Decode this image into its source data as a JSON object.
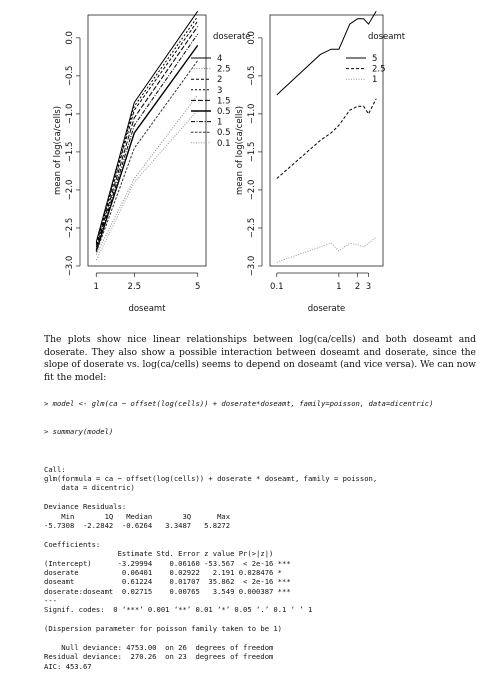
{
  "chart_data": [
    {
      "type": "line",
      "xlabel": "doseamt",
      "ylabel": "mean of log(ca/cells)",
      "x": [
        1,
        2.5,
        5
      ],
      "xticks": [
        "1",
        "2.5",
        "5"
      ],
      "ylim": [
        -3.0,
        0.3
      ],
      "yticks": [
        "-3.0",
        "-2.5",
        "-2.0",
        "-1.5",
        "-1.0",
        "-0.5",
        "0.0"
      ],
      "legend_title": "doserate",
      "legend_position": "top-right",
      "series": [
        {
          "name": "4",
          "values": [
            -2.68,
            -0.85,
            0.35
          ],
          "dash": "",
          "width": 1,
          "color": "#000000"
        },
        {
          "name": "2.5",
          "values": [
            -2.85,
            -1.85,
            -0.75
          ],
          "dash": "1,1.6",
          "width": 1,
          "color": "#888888"
        },
        {
          "name": "2",
          "values": [
            -2.72,
            -0.95,
            0.22
          ],
          "dash": "3,2",
          "width": 1,
          "color": "#000000"
        },
        {
          "name": "3",
          "values": [
            -2.7,
            -0.9,
            0.28
          ],
          "dash": "2,2",
          "width": 1,
          "color": "#000000"
        },
        {
          "name": "1.5",
          "values": [
            -2.75,
            -1.05,
            0.15
          ],
          "dash": "5,2",
          "width": 1,
          "color": "#000000"
        },
        {
          "name": "0.5",
          "values": [
            -2.8,
            -1.25,
            -0.1
          ],
          "dash": "",
          "width": 1.4,
          "color": "#000000"
        },
        {
          "name": "1",
          "values": [
            -2.78,
            -1.15,
            0.05
          ],
          "dash": "4,1.5,1,1.5",
          "width": 1,
          "color": "#000000"
        },
        {
          "name": "0.5",
          "values": [
            -2.82,
            -1.45,
            -0.3
          ],
          "dash": "2.5,1.5",
          "width": 1,
          "color": "#333333"
        },
        {
          "name": "0.1",
          "values": [
            -2.92,
            -1.9,
            -0.95
          ],
          "dash": "1,1.5",
          "width": 1,
          "color": "#999999"
        }
      ]
    },
    {
      "type": "line",
      "xlabel": "doserate",
      "ylabel": "mean of log(ca/cells)",
      "x": [
        0.1,
        0.5,
        0.75,
        1,
        1.5,
        2,
        2.5,
        3,
        4
      ],
      "xticks": [
        "0.1",
        "1",
        "2",
        "3"
      ],
      "xtick_positions": [
        0.1,
        1,
        2,
        3
      ],
      "ylim": [
        -3.0,
        0.3
      ],
      "yticks": [
        "-3.0",
        "-2.5",
        "-2.0",
        "-1.5",
        "-1.0",
        "-0.5",
        "0.0"
      ],
      "legend_title": "doseamt",
      "legend_position": "top-right",
      "series": [
        {
          "name": "5",
          "values": [
            -0.75,
            -0.22,
            -0.15,
            -0.15,
            0.18,
            0.25,
            0.25,
            0.18,
            0.35
          ],
          "dash": "",
          "width": 1,
          "color": "#000000"
        },
        {
          "name": "2.5",
          "values": [
            -1.85,
            -1.35,
            -1.25,
            -1.15,
            -0.95,
            -0.9,
            -0.9,
            -1.0,
            -0.8
          ],
          "dash": "3,2",
          "width": 1,
          "color": "#000000"
        },
        {
          "name": "1",
          "values": [
            -2.95,
            -2.75,
            -2.7,
            -2.8,
            -2.7,
            -2.72,
            -2.75,
            -2.7,
            -2.62
          ],
          "dash": "1,1.5",
          "width": 1,
          "color": "#999999"
        }
      ]
    }
  ],
  "text": {
    "paragraph": "The plots show nice linear relationships between log(ca/cells) and both doseamt and doserate. They also show a possible interaction between doseamt and doserate, since the slope of doserate vs. log(ca/cells) seems to depend on doseamt (and vice versa). We can now fit the model:",
    "cmd1": "> model <- glm(ca ~ offset(log(cells)) + doserate*doseamt, family=poisson, data=dicentric)",
    "cmd2": "> summary(model)",
    "out": [
      "",
      "Call:",
      "glm(formula = ca ~ offset(log(cells)) + doserate * doseamt, family = poisson,",
      "    data = dicentric)",
      "",
      "Deviance Residuals:",
      "    Min       1Q   Median       3Q      Max",
      "-5.7308  -2.2842  -0.6264   3.3487   5.8272",
      "",
      "Coefficients:",
      "                 Estimate Std. Error z value Pr(>|z|)",
      "(Intercept)      -3.29994    0.06160 -53.567  < 2e-16 ***",
      "doserate          0.06401    0.02922   2.191 0.028476 *",
      "doseamt           0.61224    0.01707  35.862  < 2e-16 ***",
      "doserate:doseamt  0.02715    0.00765   3.549 0.000387 ***",
      "---",
      "Signif. codes:  0 ‘***’ 0.001 ‘**’ 0.01 ‘*’ 0.05 ‘.’ 0.1 ‘ ’ 1",
      "",
      "(Dispersion parameter for poisson family taken to be 1)",
      "",
      "    Null deviance: 4753.00  on 26  degrees of freedom",
      "Residual deviance:  270.26  on 23  degrees of freedom",
      "AIC: 453.67"
    ]
  }
}
